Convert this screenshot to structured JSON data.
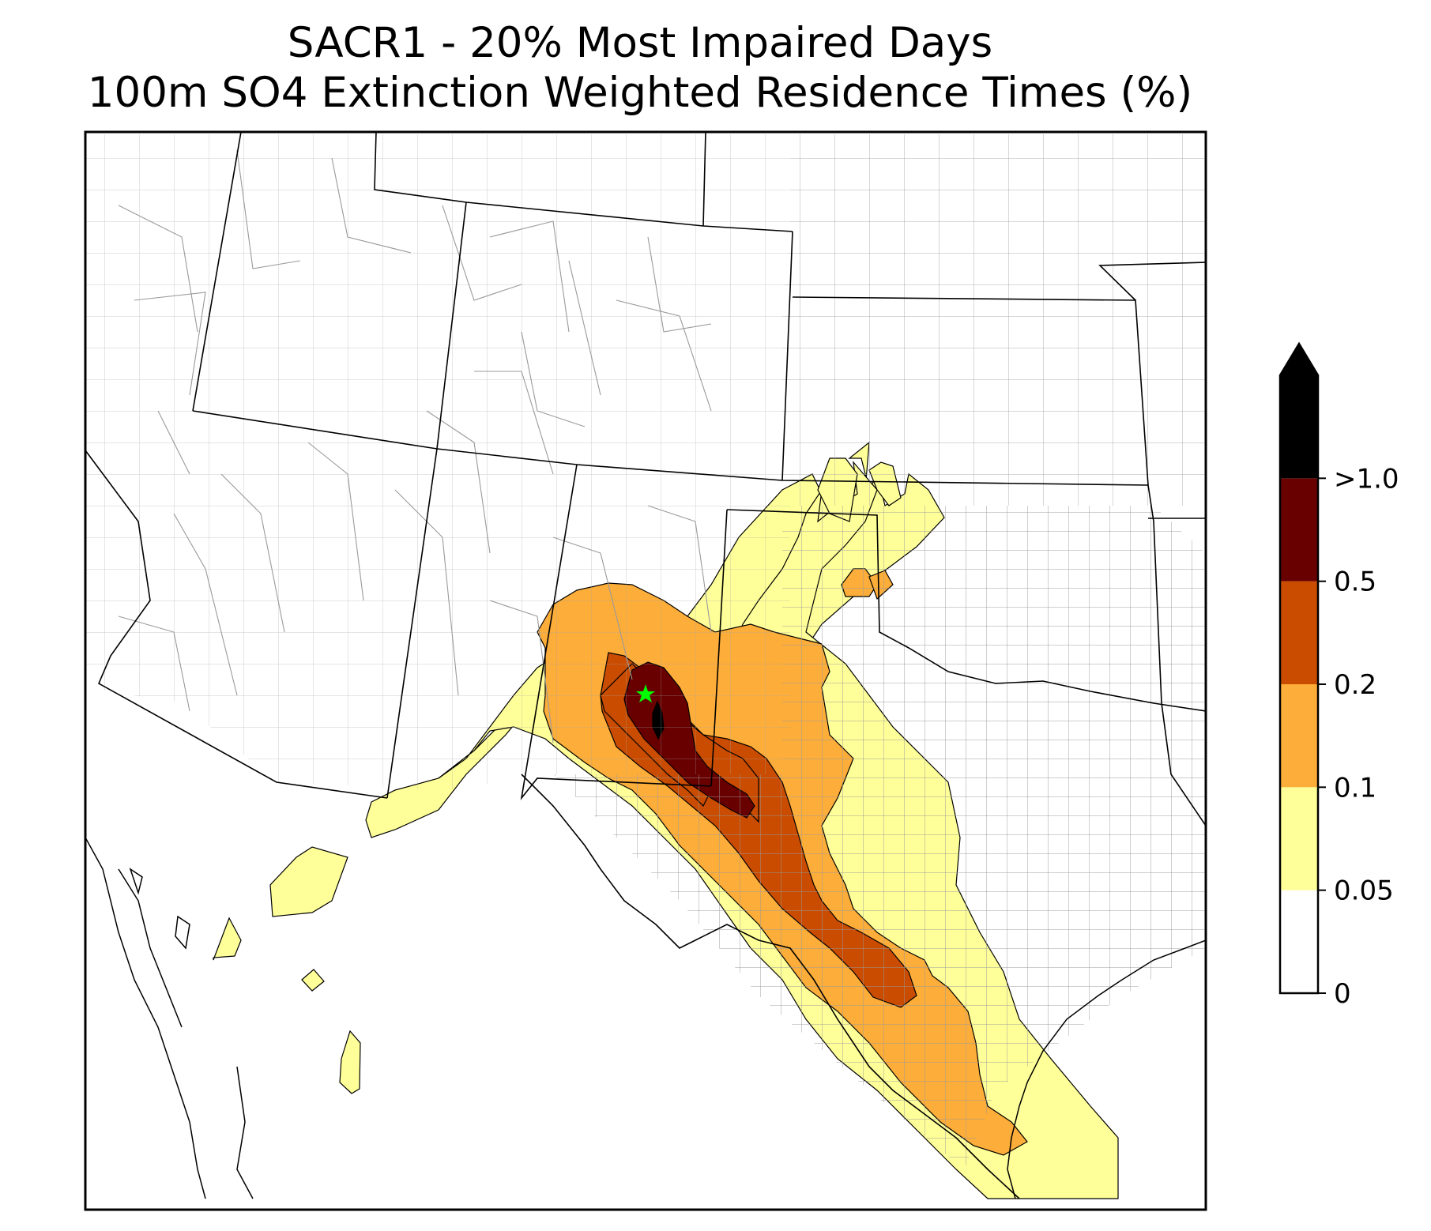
{
  "title": {
    "line1": "SACR1 - 20% Most Impaired Days",
    "line2": "100m SO4 Extinction Weighted Residence Times (%)"
  },
  "colorbar": {
    "extend": "max",
    "levels": [
      {
        "label": "0",
        "value": 0,
        "color": "#ffffff"
      },
      {
        "label": "0.05",
        "value": 0.05,
        "color": "#ffff99"
      },
      {
        "label": "0.1",
        "value": 0.1,
        "color": "#fdad39"
      },
      {
        "label": "0.2",
        "value": 0.2,
        "color": "#c94c00"
      },
      {
        "label": "0.5",
        "value": 0.5,
        "color": "#680000"
      },
      {
        "label": ">1.0",
        "value": 1.0,
        "color": "#000000"
      }
    ],
    "over_color": "#000000"
  },
  "map": {
    "site_marker": {
      "color": "#00ff00",
      "icon": "star-icon"
    },
    "state_border_color": "#000000",
    "county_border_color": "#9a9a9a"
  }
}
